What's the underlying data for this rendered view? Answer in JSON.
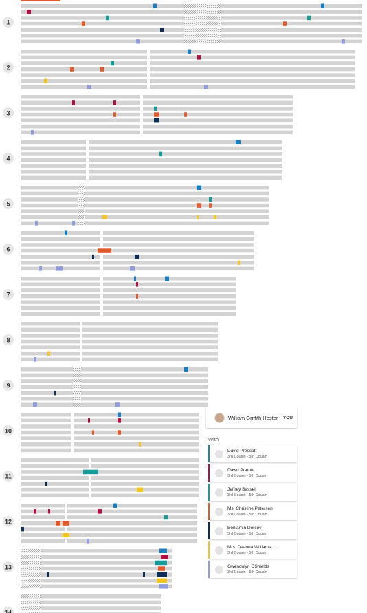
{
  "chromosomes": [
    "1",
    "2",
    "3",
    "4",
    "5",
    "6",
    "7",
    "8",
    "9",
    "10",
    "11",
    "12",
    "13",
    "14"
  ],
  "user": {
    "name": "William Griffith Hester",
    "badge": "YOU"
  },
  "with_label": "With",
  "matches": [
    {
      "name": "David Prescott",
      "relationship": "3rd Cousin - 5th Cousin",
      "color": "#1a7fc1"
    },
    {
      "name": "Dawn Prather",
      "relationship": "3rd Cousin - 5th Cousin",
      "color": "#b0103f"
    },
    {
      "name": "Jeffrey Bassell",
      "relationship": "3rd Cousin - 5th Cousin",
      "color": "#179a9a"
    },
    {
      "name": "Ms. Christine Petersen",
      "relationship": "3rd Cousin - 5th Cousin",
      "color": "#e05a2b"
    },
    {
      "name": "Benjamin Dorsey",
      "relationship": "3rd Cousin - 5th Cousin",
      "color": "#0d2f55"
    },
    {
      "name": "Mrs. Deanna Williams ...",
      "relationship": "3rd Cousin - 5th Cousin",
      "color": "#f2c522"
    },
    {
      "name": "Gwendolyn OShields",
      "relationship": "3rd Cousin - 5th Cousin",
      "color": "#8f9de0"
    }
  ]
}
